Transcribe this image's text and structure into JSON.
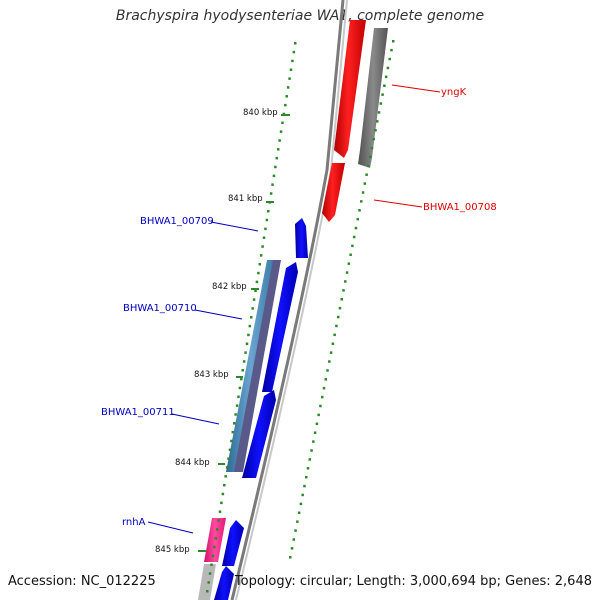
{
  "title": "Brachyspira hyodysenteriae WA1, complete genome",
  "accession": "Accession: NC_012225",
  "topology": "Topology: circular; Length: 3,000,694 bp; Genes: 2,648",
  "ticks": [
    {
      "label": "840 kbp"
    },
    {
      "label": "841 kbp"
    },
    {
      "label": "842 kbp"
    },
    {
      "label": "843 kbp"
    },
    {
      "label": "844 kbp"
    },
    {
      "label": "845 kbp"
    }
  ],
  "gene_labels": [
    {
      "name": "yngK",
      "color": "#e00000"
    },
    {
      "name": "BHWA1_00708",
      "color": "#e00000"
    },
    {
      "name": "BHWA1_00709",
      "color": "#0000c0"
    },
    {
      "name": "BHWA1_00710",
      "color": "#0000c0"
    },
    {
      "name": "BHWA1_00711",
      "color": "#0000c0"
    },
    {
      "name": "rnhA",
      "color": "#0000c0"
    }
  ],
  "colors": {
    "forward_cds": "#0000ff",
    "reverse_cds": "#ff0000",
    "gene_grey": "#6e6e6e",
    "tick_green": "#2a8a2a",
    "rna_steel": "#4a82b0",
    "rna_pink": "#ff2a8a",
    "backbone": "#808080"
  }
}
